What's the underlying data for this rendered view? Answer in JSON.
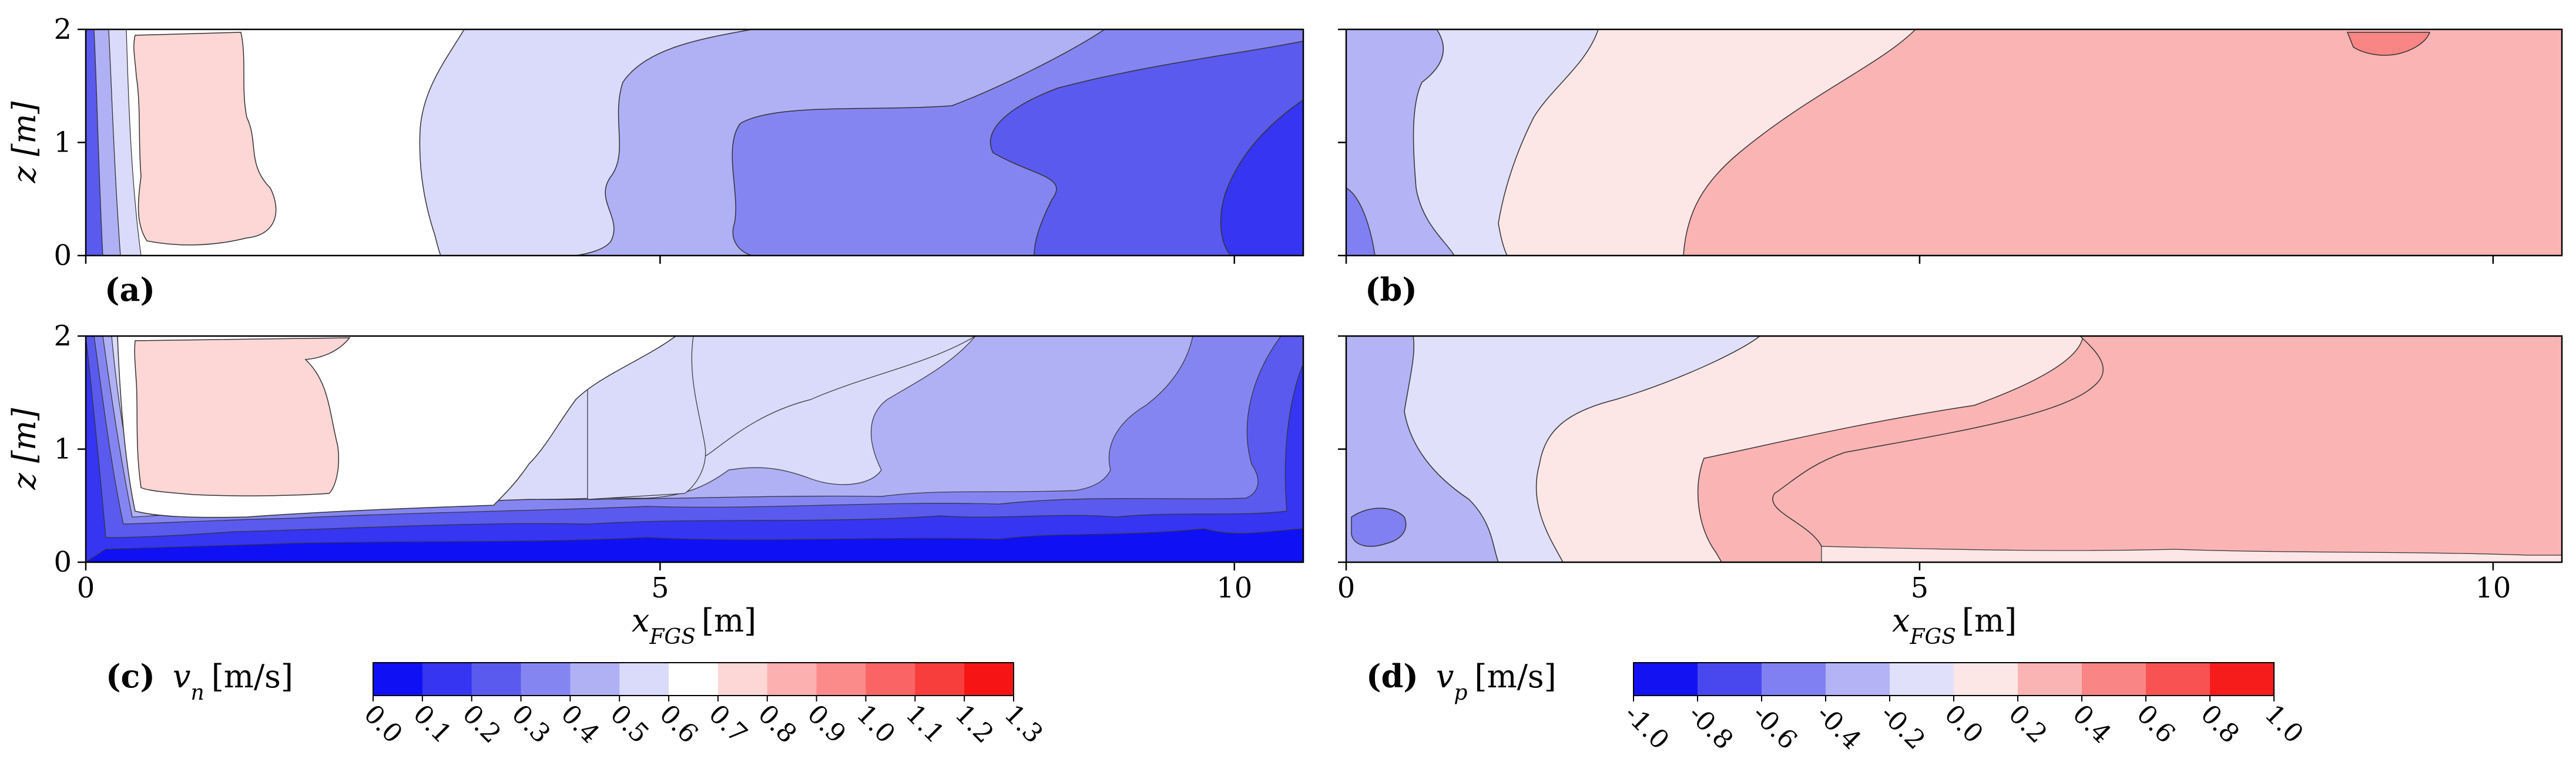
{
  "panels": [
    {
      "id": "a",
      "label": "(a)",
      "xlabel_sub": "",
      "ylabel": "z [m]",
      "field": "vn",
      "xlim": [
        0,
        10.6
      ],
      "ylim": [
        0,
        2
      ],
      "xticks": [],
      "yticks": [
        "0",
        "1",
        "2"
      ],
      "chart_data_ref": "vn_top"
    },
    {
      "id": "b",
      "label": "(b)",
      "ylabel": "",
      "field": "vp",
      "xlim": [
        0,
        10.6
      ],
      "ylim": [
        0,
        2
      ],
      "xticks": [],
      "yticks": [],
      "chart_data_ref": "vp_top"
    },
    {
      "id": "c",
      "label": "",
      "ylabel": "z [m]",
      "field": "vn",
      "xlim": [
        0,
        10.6
      ],
      "ylim": [
        0,
        2
      ],
      "xticks": [
        "0",
        "5",
        "10"
      ],
      "yticks": [
        "0",
        "1",
        "2"
      ],
      "chart_data_ref": "vn_bottom"
    },
    {
      "id": "d",
      "label": "",
      "ylabel": "",
      "field": "vp",
      "xlim": [
        0,
        10.6
      ],
      "ylim": [
        0,
        2
      ],
      "xticks": [
        "0",
        "5",
        "10"
      ],
      "yticks": [],
      "chart_data_ref": "vp_bottom"
    }
  ],
  "xlabel": {
    "main": "x",
    "sub": "FGS",
    "unit": "[m]"
  },
  "colorbars": [
    {
      "id": "vn",
      "label_tag": "(c)",
      "symbol": "v",
      "symbol_sub": "n",
      "unit": "[m/s]",
      "levels": [
        "0.0",
        "0.1",
        "0.2",
        "0.3",
        "0.4",
        "0.5",
        "0.6",
        "0.7",
        "0.8",
        "0.9",
        "1.0",
        "1.1",
        "1.2",
        "1.3"
      ],
      "colors": [
        "#1010f5",
        "#3535f2",
        "#5a5aee",
        "#8585f2",
        "#b0b0f5",
        "#dadafa",
        "#ffffff",
        "#fdd6d6",
        "#fcb0b0",
        "#fb8a8a",
        "#fa6464",
        "#f83d3d",
        "#f71414"
      ]
    },
    {
      "id": "vp",
      "label_tag": "(d)",
      "symbol": "v",
      "symbol_sub": "p",
      "unit": "[m/s]",
      "levels": [
        "-1.0",
        "-0.8",
        "-0.6",
        "-0.4",
        "-0.2",
        "0.0",
        "0.2",
        "0.4",
        "0.6",
        "0.8",
        "1.0"
      ],
      "colors": [
        "#1212f3",
        "#4848ee",
        "#8080f2",
        "#b3b3f6",
        "#e0e0fb",
        "#fde6e6",
        "#fbb4b4",
        "#fa8585",
        "#f85252",
        "#f61c1c"
      ]
    }
  ],
  "chart_data": [
    {
      "type": "heatmap",
      "id": "vn_top",
      "x_range": [
        0,
        10.6
      ],
      "z_range": [
        0,
        2
      ],
      "regions": [
        {
          "level": "0.0-0.6 band near x=0",
          "x_from": 0.0,
          "x_to": 0.35,
          "value": 0.4
        },
        {
          "level": "0.7-0.8",
          "x_from": 0.35,
          "x_to": 1.5,
          "value": 0.75
        },
        {
          "level": "0.6-0.7",
          "x_from": 1.5,
          "x_to": 3.2,
          "value": 0.65
        },
        {
          "level": "0.5-0.6",
          "x_from": 3.2,
          "x_to": 4.5,
          "value": 0.55
        },
        {
          "level": "0.4-0.5",
          "x_from": 4.5,
          "x_to": 5.7,
          "value": 0.45
        },
        {
          "level": "0.3-0.4",
          "x_from": 5.7,
          "x_to": 7.7,
          "value": 0.35
        },
        {
          "level": "0.2-0.3",
          "x_from": 7.7,
          "x_to": 10.0,
          "value": 0.25
        },
        {
          "level": "0.1-0.2",
          "x_from": 10.0,
          "x_to": 10.6,
          "value": 0.15
        }
      ]
    },
    {
      "type": "heatmap",
      "id": "vp_top",
      "x_range": [
        0,
        10.6
      ],
      "z_range": [
        0,
        2
      ],
      "regions": [
        {
          "level": "-0.6 to -0.4",
          "x_from": 0.0,
          "x_to": 0.2,
          "value": -0.5
        },
        {
          "level": "-0.4 to -0.2",
          "x_from": 0.0,
          "x_to": 0.9,
          "value": -0.3
        },
        {
          "level": "-0.2 to 0.0",
          "x_from": 0.9,
          "x_to": 1.9,
          "value": -0.1
        },
        {
          "level": "0.0 to 0.2",
          "x_from": 1.9,
          "x_to": 4.8,
          "value": 0.1
        },
        {
          "level": "0.2 to 0.4",
          "x_from": 3.0,
          "x_to": 10.6,
          "value": 0.3
        },
        {
          "level": "0.4 to 0.6",
          "x_from": 8.7,
          "x_to": 9.4,
          "value": 0.5
        }
      ]
    },
    {
      "type": "heatmap",
      "id": "vn_bottom",
      "x_range": [
        0,
        10.6
      ],
      "z_range": [
        0,
        2
      ],
      "regions": [
        {
          "level": "0.7-0.8",
          "x_from": 0.4,
          "x_to": 2.2,
          "value": 0.75
        },
        {
          "level": "0.6-0.7",
          "x_from": 0.3,
          "x_to": 4.4,
          "value": 0.65
        },
        {
          "level": "0.5-0.6",
          "x_from": 3.6,
          "x_to": 5.4,
          "value": 0.55
        },
        {
          "level": "0.4-0.5",
          "x_from": 5.4,
          "x_to": 6.8,
          "value": 0.45
        },
        {
          "level": "0.3-0.4",
          "x_from": 6.8,
          "x_to": 9.0,
          "value": 0.35
        },
        {
          "level": "0.2-0.3",
          "x_from": 9.0,
          "x_to": 10.6,
          "value": 0.25
        },
        {
          "level": "0.0-0.2 near floor",
          "x_from": 0.0,
          "x_to": 10.6,
          "value": 0.1
        }
      ]
    },
    {
      "type": "heatmap",
      "id": "vp_bottom",
      "x_range": [
        0,
        10.6
      ],
      "z_range": [
        0,
        2
      ],
      "regions": [
        {
          "level": "-0.6 to -0.4",
          "x_from": 0.1,
          "x_to": 0.6,
          "value": -0.5
        },
        {
          "level": "-0.4 to -0.2",
          "x_from": 0.0,
          "x_to": 1.2,
          "value": -0.3
        },
        {
          "level": "-0.2 to 0.0",
          "x_from": 0.5,
          "x_to": 3.6,
          "value": -0.1
        },
        {
          "level": "0.0 to 0.2",
          "x_from": 1.7,
          "x_to": 6.5,
          "value": 0.1
        },
        {
          "level": "0.2 to 0.4",
          "x_from": 3.1,
          "x_to": 10.6,
          "value": 0.3
        }
      ]
    }
  ]
}
